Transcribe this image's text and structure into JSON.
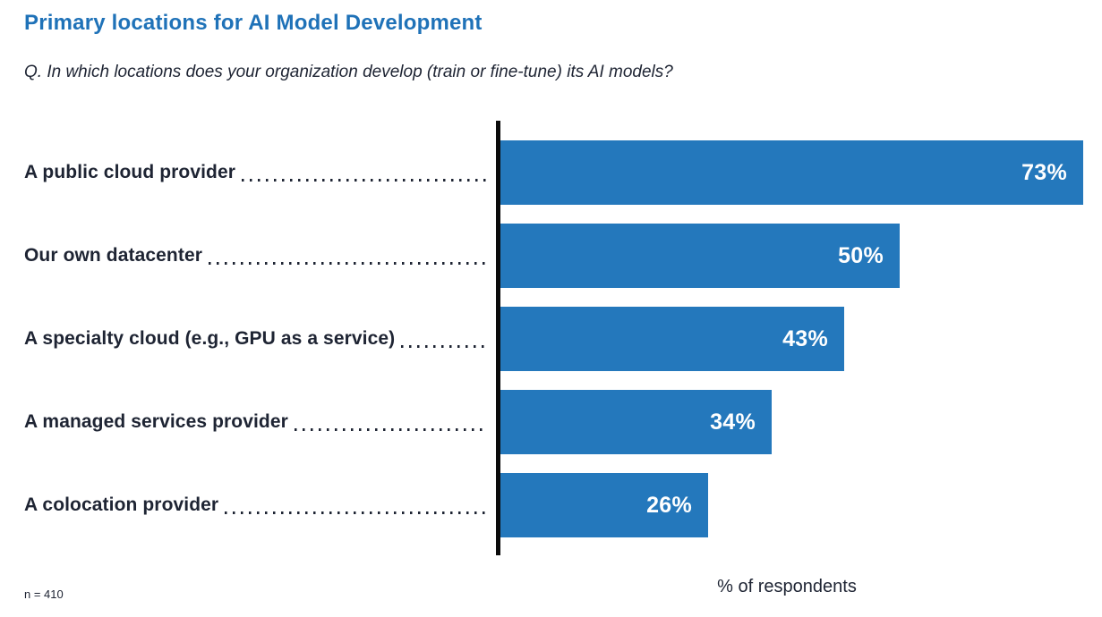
{
  "title": "Primary locations for AI Model Development",
  "subtitle": "Q. In which locations does your organization develop (train or fine-tune) its AI models?",
  "footnote": "n = 410",
  "colors": {
    "bar": "#2478bc",
    "title": "#1f72b8",
    "text": "#1e2433",
    "axis": "#0b0b0b",
    "value_label": "#ffffff"
  },
  "chart_data": {
    "type": "bar",
    "orientation": "horizontal",
    "title": "Primary locations for AI Model Development",
    "subtitle": "Q. In which locations does your organization develop (train or fine-tune) its AI models?",
    "categories": [
      "A public cloud provider",
      "Our own datacenter",
      "A specialty cloud (e.g., GPU as a service)",
      "A managed services provider",
      "A colocation provider"
    ],
    "values": [
      73,
      50,
      43,
      34,
      26
    ],
    "value_labels": [
      "73%",
      "50%",
      "43%",
      "34%",
      "26%"
    ],
    "xlabel": "% of respondents",
    "ylabel": "",
    "xlim": [
      0,
      73
    ],
    "grid": false,
    "legend": false,
    "sample_size_note": "n = 410"
  }
}
